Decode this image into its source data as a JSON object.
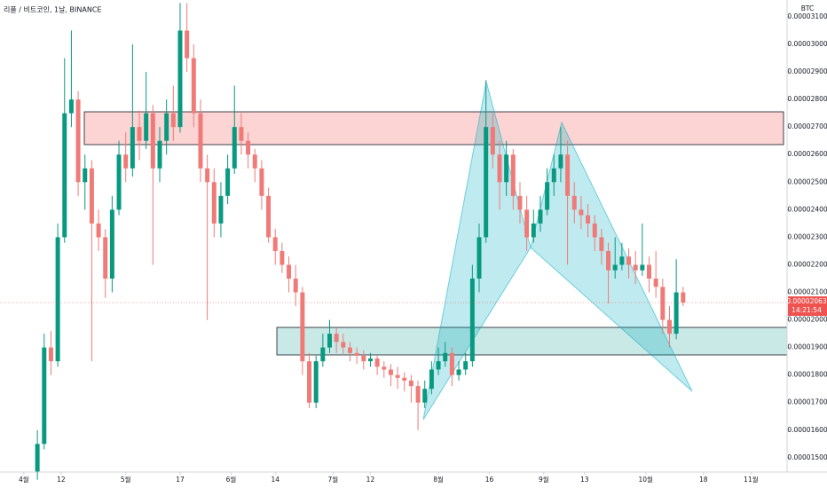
{
  "chart_data": {
    "type": "candlestick",
    "legend_text": "리플 / 비트코인, 1날, BINANCE",
    "y_unit": "BTC",
    "up_color": "#089981",
    "down_color": "#f07a78",
    "xlim": [
      -7,
      224.6
    ],
    "xticks": [
      {
        "value": 0,
        "label": "4월"
      },
      {
        "value": 11,
        "label": "12"
      },
      {
        "value": 30,
        "label": "5월"
      },
      {
        "value": 46,
        "label": "17"
      },
      {
        "value": 61,
        "label": "6월"
      },
      {
        "value": 74,
        "label": "14"
      },
      {
        "value": 91,
        "label": "7월"
      },
      {
        "value": 102,
        "label": "12"
      },
      {
        "value": 122,
        "label": "8월"
      },
      {
        "value": 137,
        "label": "16"
      },
      {
        "value": 153,
        "label": "9월"
      },
      {
        "value": 165,
        "label": "13"
      },
      {
        "value": 183,
        "label": "10월"
      },
      {
        "value": 200,
        "label": "18"
      },
      {
        "value": 214,
        "label": "11월"
      }
    ],
    "ylim": [
      1.448e-05,
      3.161e-05
    ],
    "yticks": [
      {
        "value": 3.1e-05,
        "label": "0.00003100"
      },
      {
        "value": 3e-05,
        "label": "0.00003000"
      },
      {
        "value": 2.9e-05,
        "label": "0.00002900"
      },
      {
        "value": 2.8e-05,
        "label": "0.00002800"
      },
      {
        "value": 2.7e-05,
        "label": "0.00002700"
      },
      {
        "value": 2.6e-05,
        "label": "0.00002600"
      },
      {
        "value": 2.5e-05,
        "label": "0.00002500"
      },
      {
        "value": 2.4e-05,
        "label": "0.00002400"
      },
      {
        "value": 2.3e-05,
        "label": "0.00002300"
      },
      {
        "value": 2.2e-05,
        "label": "0.00002200"
      },
      {
        "value": 2.1e-05,
        "label": "0.00002100"
      },
      {
        "value": 2e-05,
        "label": "0.00002000"
      },
      {
        "value": 1.9e-05,
        "label": "0.00001900"
      },
      {
        "value": 1.8e-05,
        "label": "0.00001800"
      },
      {
        "value": 1.7e-05,
        "label": "0.00001700"
      },
      {
        "value": 1.6e-05,
        "label": "0.00001600"
      },
      {
        "value": 1.5e-05,
        "label": "0.00001500"
      }
    ],
    "last_price": {
      "value": 2.063e-05,
      "label": "0.00002063"
    },
    "countdown": "14:21:54",
    "x": [
      4,
      6,
      8,
      10,
      12,
      14,
      16,
      18,
      20,
      22,
      24,
      26,
      28,
      30,
      32,
      34,
      36,
      38,
      40,
      42,
      44,
      46,
      48,
      50,
      52,
      54,
      56,
      58,
      60,
      62,
      64,
      66,
      68,
      70,
      72,
      74,
      76,
      78,
      80,
      82,
      84,
      86,
      88,
      90,
      92,
      94,
      96,
      98,
      100,
      102,
      104,
      106,
      108,
      110,
      112,
      114,
      116,
      118,
      120,
      122,
      124,
      126,
      128,
      130,
      132,
      134,
      136,
      138,
      140,
      142,
      144,
      146,
      148,
      150,
      152,
      154,
      156,
      158,
      160,
      162,
      164,
      166,
      168,
      170,
      172,
      174,
      176,
      178,
      180,
      182,
      184,
      186,
      188,
      190,
      192,
      194
    ],
    "open": [
      1.45e-05,
      1.55e-05,
      1.9e-05,
      1.85e-05,
      2.3e-05,
      2.75e-05,
      2.8e-05,
      2.5e-05,
      2.55e-05,
      2.35e-05,
      2.3e-05,
      2.15e-05,
      2.4e-05,
      2.6e-05,
      2.55e-05,
      2.7e-05,
      2.65e-05,
      2.75e-05,
      2.55e-05,
      2.65e-05,
      2.75e-05,
      2.7e-05,
      3.05e-05,
      2.95e-05,
      2.75e-05,
      2.55e-05,
      2.5e-05,
      2.35e-05,
      2.45e-05,
      2.55e-05,
      2.7e-05,
      2.65e-05,
      2.6e-05,
      2.55e-05,
      2.45e-05,
      2.3e-05,
      2.25e-05,
      2.2e-05,
      2.15e-05,
      2.1e-05,
      1.85e-05,
      1.7e-05,
      1.85e-05,
      1.9e-05,
      1.95e-05,
      1.92e-05,
      1.9e-05,
      1.88e-05,
      1.87e-05,
      1.85e-05,
      1.86e-05,
      1.83e-05,
      1.82e-05,
      1.8e-05,
      1.79e-05,
      1.78e-05,
      1.76e-05,
      1.7e-05,
      1.75e-05,
      1.82e-05,
      1.85e-05,
      1.88e-05,
      1.8e-05,
      1.82e-05,
      1.85e-05,
      2.15e-05,
      2.3e-05,
      2.7e-05,
      2.6e-05,
      2.5e-05,
      2.6e-05,
      2.45e-05,
      2.4e-05,
      2.3e-05,
      2.35e-05,
      2.4e-05,
      2.5e-05,
      2.55e-05,
      2.6e-05,
      2.45e-05,
      2.4e-05,
      2.38e-05,
      2.35e-05,
      2.3e-05,
      2.25e-05,
      2.18e-05,
      2.2e-05,
      2.23e-05,
      2.2e-05,
      2.18e-05,
      2.2e-05,
      2.15e-05,
      2.12e-05,
      2e-05,
      1.95e-05,
      2.1e-05
    ],
    "high": [
      1.6e-05,
      1.95e-05,
      1.96e-05,
      2.35e-05,
      2.95e-05,
      3.05e-05,
      2.83e-05,
      2.6e-05,
      2.58e-05,
      2.4e-05,
      2.33e-05,
      2.45e-05,
      2.65e-05,
      2.68e-05,
      3e-05,
      2.76e-05,
      2.9e-05,
      2.78e-05,
      2.7e-05,
      2.8e-05,
      2.85e-05,
      3.15e-05,
      3.15e-05,
      3e-05,
      2.8e-05,
      2.6e-05,
      2.55e-05,
      2.5e-05,
      2.6e-05,
      2.85e-05,
      2.75e-05,
      2.68e-05,
      2.62e-05,
      2.58e-05,
      2.48e-05,
      2.33e-05,
      2.28e-05,
      2.23e-05,
      2.2e-05,
      2.12e-05,
      1.88e-05,
      1.87e-05,
      1.95e-05,
      2e-05,
      1.97e-05,
      1.95e-05,
      1.92e-05,
      1.9e-05,
      1.89e-05,
      1.88e-05,
      1.87e-05,
      1.85e-05,
      1.84e-05,
      1.83e-05,
      1.81e-05,
      1.8e-05,
      1.78e-05,
      1.78e-05,
      1.85e-05,
      1.9e-05,
      1.92e-05,
      1.9e-05,
      1.85e-05,
      1.88e-05,
      2.2e-05,
      2.35e-05,
      2.87e-05,
      2.75e-05,
      2.65e-05,
      2.65e-05,
      2.62e-05,
      2.5e-05,
      2.45e-05,
      2.4e-05,
      2.45e-05,
      2.55e-05,
      2.6e-05,
      2.7e-05,
      2.65e-05,
      2.5e-05,
      2.45e-05,
      2.42e-05,
      2.38e-05,
      2.33e-05,
      2.28e-05,
      2.3e-05,
      2.28e-05,
      2.26e-05,
      2.25e-05,
      2.35e-05,
      2.23e-05,
      2.25e-05,
      2.15e-05,
      2.05e-05,
      2.22e-05,
      2.12e-05
    ],
    "low": [
      1.42e-05,
      1.53e-05,
      1.8e-05,
      1.83e-05,
      2.28e-05,
      2.7e-05,
      2.45e-05,
      2.4e-05,
      1.85e-05,
      2.25e-05,
      2.08e-05,
      2.1e-05,
      2.38e-05,
      2.5e-05,
      2.52e-05,
      2.58e-05,
      2.62e-05,
      2.2e-05,
      2.5e-05,
      2.6e-05,
      2.65e-05,
      2.68e-05,
      2.9e-05,
      2.7e-05,
      2.5e-05,
      2e-05,
      2.3e-05,
      2.3e-05,
      2.42e-05,
      2.53e-05,
      2.6e-05,
      2.55e-05,
      2.5e-05,
      2.4e-05,
      2.28e-05,
      2.2e-05,
      2.17e-05,
      2.1e-05,
      2.05e-05,
      1.8e-05,
      1.68e-05,
      1.68e-05,
      1.83e-05,
      1.88e-05,
      1.88e-05,
      1.87e-05,
      1.85e-05,
      1.84e-05,
      1.82e-05,
      1.83e-05,
      1.8e-05,
      1.79e-05,
      1.76e-05,
      1.75e-05,
      1.74e-05,
      1.7e-05,
      1.6e-05,
      1.68e-05,
      1.73e-05,
      1.8e-05,
      1.83e-05,
      1.76e-05,
      1.78e-05,
      1.8e-05,
      1.83e-05,
      2.1e-05,
      2.28e-05,
      2.55e-05,
      2.4e-05,
      2.45e-05,
      2.4e-05,
      2.35e-05,
      2.25e-05,
      2.28e-05,
      2.32e-05,
      2.38e-05,
      2.45e-05,
      2.5e-05,
      2.2e-05,
      2.35e-05,
      2.33e-05,
      2.3e-05,
      2.25e-05,
      2.2e-05,
      2.06e-05,
      2.15e-05,
      2.18e-05,
      2.15e-05,
      2.13e-05,
      2.16e-05,
      2.1e-05,
      2.08e-05,
      1.95e-05,
      1.9e-05,
      1.93e-05,
      2.05e-05
    ],
    "close": [
      1.55e-05,
      1.9e-05,
      1.85e-05,
      2.3e-05,
      2.75e-05,
      2.8e-05,
      2.5e-05,
      2.55e-05,
      2.35e-05,
      2.3e-05,
      2.15e-05,
      2.4e-05,
      2.6e-05,
      2.55e-05,
      2.7e-05,
      2.65e-05,
      2.75e-05,
      2.55e-05,
      2.65e-05,
      2.75e-05,
      2.7e-05,
      3.05e-05,
      2.95e-05,
      2.75e-05,
      2.55e-05,
      2.5e-05,
      2.35e-05,
      2.45e-05,
      2.55e-05,
      2.7e-05,
      2.65e-05,
      2.6e-05,
      2.55e-05,
      2.45e-05,
      2.3e-05,
      2.25e-05,
      2.2e-05,
      2.15e-05,
      2.1e-05,
      1.85e-05,
      1.7e-05,
      1.85e-05,
      1.9e-05,
      1.95e-05,
      1.92e-05,
      1.9e-05,
      1.88e-05,
      1.87e-05,
      1.85e-05,
      1.86e-05,
      1.83e-05,
      1.82e-05,
      1.8e-05,
      1.79e-05,
      1.78e-05,
      1.76e-05,
      1.7e-05,
      1.75e-05,
      1.82e-05,
      1.85e-05,
      1.88e-05,
      1.8e-05,
      1.82e-05,
      1.85e-05,
      2.15e-05,
      2.3e-05,
      2.7e-05,
      2.6e-05,
      2.5e-05,
      2.6e-05,
      2.45e-05,
      2.4e-05,
      2.3e-05,
      2.35e-05,
      2.4e-05,
      2.5e-05,
      2.55e-05,
      2.6e-05,
      2.45e-05,
      2.4e-05,
      2.38e-05,
      2.35e-05,
      2.3e-05,
      2.25e-05,
      2.18e-05,
      2.2e-05,
      2.23e-05,
      2.2e-05,
      2.18e-05,
      2.2e-05,
      2.15e-05,
      2.12e-05,
      2e-05,
      1.95e-05,
      2.1e-05,
      2.063e-05
    ]
  }
}
